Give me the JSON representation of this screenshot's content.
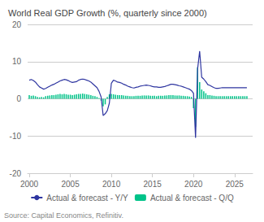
{
  "chart_data": {
    "type": "bar",
    "title": "World Real GDP Growth (%, quarterly since 2000)",
    "annotations": [
      "Source: Capital Economics, Refinitiv."
    ],
    "grid": true,
    "legend": "bottom",
    "xlim": [
      1999.8,
      2027.2
    ],
    "xticks": [
      2000,
      2005,
      2010,
      2015,
      2020,
      2025
    ],
    "ylim": [
      -20,
      20
    ],
    "yticks": [
      -20,
      -10,
      0,
      10,
      20
    ],
    "x": [
      2000.0,
      2000.25,
      2000.5,
      2000.75,
      2001.0,
      2001.25,
      2001.5,
      2001.75,
      2002.0,
      2002.25,
      2002.5,
      2002.75,
      2003.0,
      2003.25,
      2003.5,
      2003.75,
      2004.0,
      2004.25,
      2004.5,
      2004.75,
      2005.0,
      2005.25,
      2005.5,
      2005.75,
      2006.0,
      2006.25,
      2006.5,
      2006.75,
      2007.0,
      2007.25,
      2007.5,
      2007.75,
      2008.0,
      2008.25,
      2008.5,
      2008.75,
      2009.0,
      2009.25,
      2009.5,
      2009.75,
      2010.0,
      2010.25,
      2010.5,
      2010.75,
      2011.0,
      2011.25,
      2011.5,
      2011.75,
      2012.0,
      2012.25,
      2012.5,
      2012.75,
      2013.0,
      2013.25,
      2013.5,
      2013.75,
      2014.0,
      2014.25,
      2014.5,
      2014.75,
      2015.0,
      2015.25,
      2015.5,
      2015.75,
      2016.0,
      2016.25,
      2016.5,
      2016.75,
      2017.0,
      2017.25,
      2017.5,
      2017.75,
      2018.0,
      2018.25,
      2018.5,
      2018.75,
      2019.0,
      2019.25,
      2019.5,
      2019.75,
      2020.0,
      2020.25,
      2020.5,
      2020.75,
      2021.0,
      2021.25,
      2021.5,
      2021.75,
      2022.0,
      2022.25,
      2022.5,
      2022.75,
      2023.0,
      2023.25,
      2023.5,
      2023.75,
      2024.0,
      2024.25,
      2024.5,
      2024.75,
      2025.0,
      2025.25,
      2025.5,
      2025.75,
      2026.0,
      2026.25,
      2026.5
    ],
    "series": [
      {
        "name": "Actual & forecast - Y/Y",
        "type": "line",
        "color": "#2e35a0",
        "values": [
          5.0,
          5.2,
          4.9,
          4.5,
          3.8,
          3.2,
          2.9,
          2.6,
          2.8,
          3.1,
          3.4,
          3.7,
          3.9,
          4.2,
          4.5,
          4.8,
          5.0,
          5.2,
          5.1,
          4.9,
          4.6,
          4.4,
          4.5,
          4.6,
          5.0,
          5.2,
          5.3,
          5.2,
          5.0,
          4.8,
          4.5,
          4.0,
          3.5,
          3.0,
          2.0,
          0.5,
          -4.5,
          -4.0,
          -3.2,
          -1.2,
          4.2,
          5.0,
          4.8,
          4.5,
          4.4,
          4.2,
          3.9,
          3.7,
          3.4,
          3.2,
          3.0,
          2.9,
          3.1,
          3.2,
          3.4,
          3.5,
          3.6,
          3.7,
          3.6,
          3.5,
          3.3,
          3.2,
          3.2,
          3.1,
          3.1,
          3.2,
          3.3,
          3.5,
          3.7,
          3.9,
          3.9,
          3.8,
          3.7,
          3.5,
          3.4,
          3.2,
          3.0,
          2.8,
          2.6,
          2.2,
          1.5,
          -10.5,
          8.0,
          12.8,
          5.8,
          5.3,
          4.6,
          3.8,
          3.6,
          3.3,
          3.0,
          2.8,
          2.8,
          2.9,
          3.0,
          3.0,
          3.0,
          3.0,
          3.0,
          3.0,
          3.0,
          3.0,
          3.0,
          3.0,
          3.0,
          3.0,
          3.0
        ]
      },
      {
        "name": "Actual & forecast - Q/Q",
        "type": "bar",
        "color": "#00c389",
        "values": [
          1.0,
          0.8,
          0.9,
          0.7,
          0.5,
          0.4,
          0.5,
          0.4,
          0.7,
          0.8,
          0.9,
          1.0,
          1.0,
          1.1,
          1.2,
          1.3,
          1.2,
          1.3,
          1.2,
          1.1,
          1.1,
          1.0,
          1.1,
          1.2,
          1.3,
          1.3,
          1.4,
          1.3,
          1.2,
          1.1,
          1.0,
          0.8,
          0.7,
          0.5,
          0.2,
          -0.5,
          -2.0,
          -1.5,
          0.5,
          1.2,
          1.3,
          1.2,
          1.1,
          1.0,
          1.0,
          1.0,
          0.9,
          0.8,
          0.8,
          0.7,
          0.7,
          0.7,
          0.8,
          0.8,
          0.8,
          0.9,
          0.9,
          0.9,
          0.9,
          0.8,
          0.8,
          0.8,
          0.7,
          0.8,
          0.8,
          0.8,
          0.9,
          0.9,
          1.0,
          1.0,
          1.0,
          0.9,
          0.9,
          0.9,
          0.8,
          0.8,
          0.7,
          0.7,
          0.6,
          0.5,
          -2.5,
          -7.5,
          8.5,
          4.5,
          2.5,
          2.0,
          1.5,
          1.0,
          1.0,
          0.9,
          0.8,
          0.7,
          0.7,
          0.7,
          0.7,
          0.7,
          0.7,
          0.7,
          0.7,
          0.7,
          0.7,
          0.7,
          0.7,
          0.7,
          0.7,
          0.7,
          0.7
        ]
      }
    ]
  }
}
